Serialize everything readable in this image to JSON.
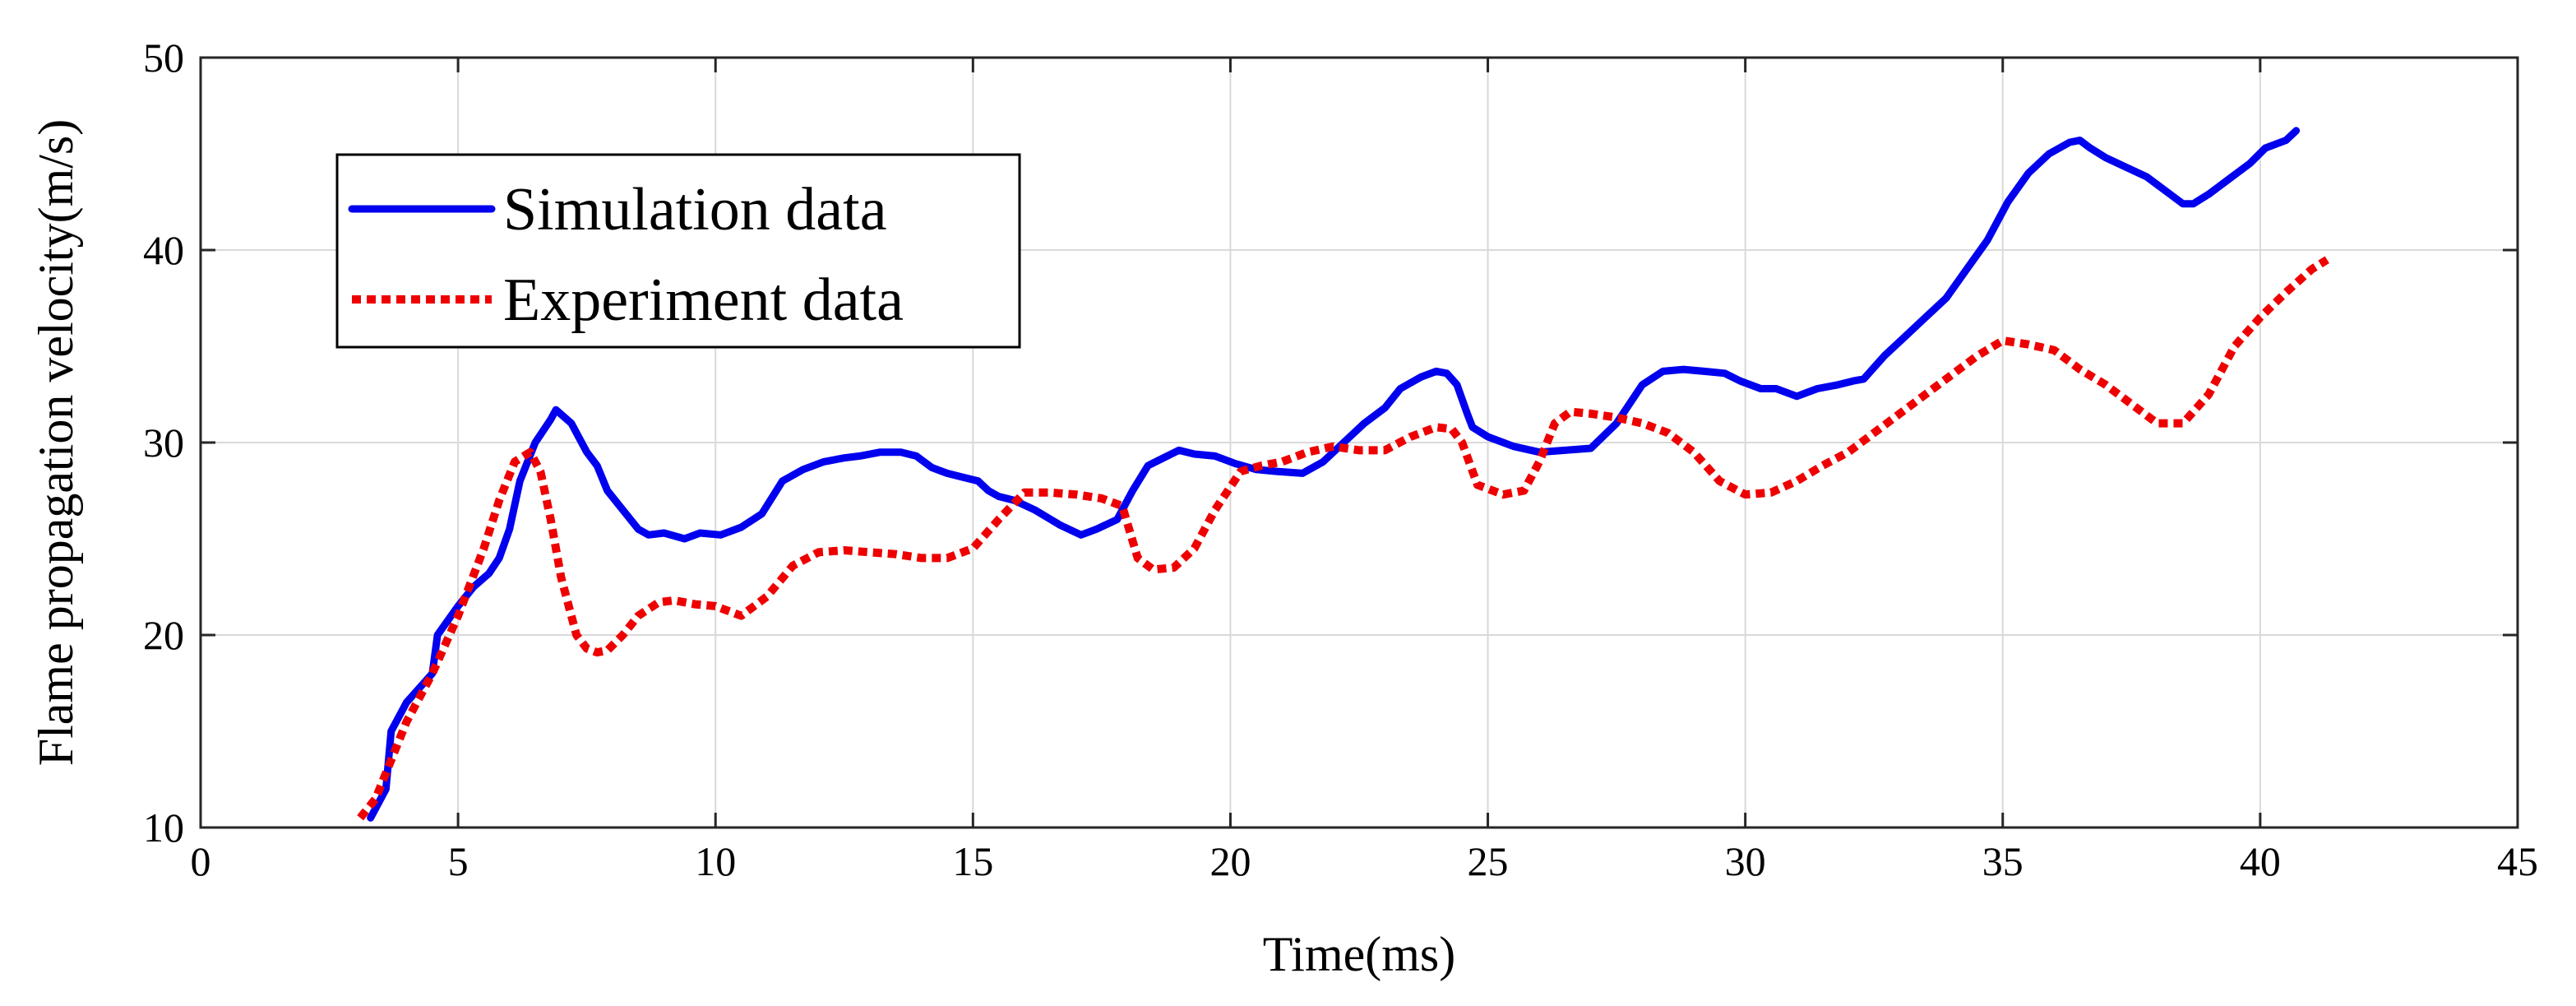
{
  "chart_data": {
    "type": "line",
    "title": "",
    "xlabel": "Time(ms)",
    "ylabel": "Flame propagation velocity(m/s)",
    "xlim": [
      0,
      45
    ],
    "ylim": [
      10,
      50
    ],
    "xticks": [
      0,
      5,
      10,
      15,
      20,
      25,
      30,
      35,
      40,
      45
    ],
    "yticks": [
      10,
      20,
      30,
      40,
      50
    ],
    "grid": true,
    "legend_position": "top-left",
    "series": [
      {
        "name": "Simulation data",
        "color": "#0000ee",
        "style": "solid",
        "x": [
          3.3,
          3.6,
          3.7,
          4.0,
          4.5,
          4.6,
          5.0,
          5.3,
          5.6,
          5.8,
          6.0,
          6.2,
          6.5,
          6.8,
          6.9,
          7.2,
          7.5,
          7.7,
          7.9,
          8.2,
          8.5,
          8.7,
          9.0,
          9.4,
          9.7,
          10.1,
          10.5,
          10.9,
          11.3,
          11.7,
          12.1,
          12.5,
          12.8,
          13.2,
          13.6,
          13.9,
          14.2,
          14.5,
          14.8,
          15.1,
          15.3,
          15.5,
          15.8,
          16.2,
          16.7,
          17.1,
          17.4,
          17.8,
          18.1,
          18.4,
          18.7,
          19.0,
          19.3,
          19.7,
          20.1,
          20.5,
          20.9,
          21.4,
          21.8,
          22.2,
          22.6,
          23.0,
          23.3,
          23.7,
          24.0,
          24.2,
          24.4,
          24.6,
          24.7,
          25.0,
          25.5,
          26.0,
          26.5,
          27.0,
          27.5,
          28.0,
          28.4,
          28.8,
          29.2,
          29.6,
          29.9,
          30.3,
          30.6,
          30.8,
          31.0,
          31.4,
          31.8,
          32.1,
          32.3,
          32.7,
          33.1,
          33.5,
          33.9,
          34.3,
          34.7,
          35.1,
          35.5,
          35.9,
          36.3,
          36.5,
          36.7,
          37.0,
          37.4,
          37.8,
          38.2,
          38.5,
          38.7,
          39.0,
          39.4,
          39.8,
          40.1,
          40.5,
          40.7
        ],
        "y": [
          10.5,
          12.0,
          15.0,
          16.5,
          18.0,
          20.0,
          21.5,
          22.5,
          23.2,
          24.0,
          25.5,
          28.0,
          30.0,
          31.2,
          31.7,
          31.0,
          29.5,
          28.8,
          27.5,
          26.5,
          25.5,
          25.2,
          25.3,
          25.0,
          25.3,
          25.2,
          25.6,
          26.3,
          28.0,
          28.6,
          29.0,
          29.2,
          29.3,
          29.5,
          29.5,
          29.3,
          28.7,
          28.4,
          28.2,
          28.0,
          27.5,
          27.2,
          27.0,
          26.5,
          25.7,
          25.2,
          25.5,
          26.0,
          27.5,
          28.8,
          29.2,
          29.6,
          29.4,
          29.3,
          28.9,
          28.6,
          28.5,
          28.4,
          29.0,
          30.0,
          31.0,
          31.8,
          32.8,
          33.4,
          33.7,
          33.6,
          33.0,
          31.5,
          30.8,
          30.3,
          29.8,
          29.5,
          29.6,
          29.7,
          31.0,
          33.0,
          33.7,
          33.8,
          33.7,
          33.6,
          33.2,
          32.8,
          32.8,
          32.6,
          32.4,
          32.8,
          33.0,
          33.2,
          33.3,
          34.5,
          35.5,
          36.5,
          37.5,
          39.0,
          40.5,
          42.5,
          44.0,
          45.0,
          45.6,
          45.7,
          45.3,
          44.8,
          44.3,
          43.8,
          43.0,
          42.4,
          42.4,
          42.9,
          43.7,
          44.5,
          45.3,
          45.7,
          46.2
        ]
      },
      {
        "name": "Experiment data",
        "color": "#ee0000",
        "style": "dotted",
        "x": [
          3.1,
          3.4,
          3.7,
          4.0,
          4.5,
          5.0,
          5.5,
          5.8,
          6.1,
          6.4,
          6.6,
          6.8,
          7.0,
          7.3,
          7.5,
          7.7,
          7.9,
          8.2,
          8.5,
          8.9,
          9.2,
          9.6,
          10.0,
          10.5,
          11.0,
          11.5,
          12.0,
          12.5,
          13.0,
          13.5,
          14.0,
          14.5,
          15.0,
          15.5,
          16.0,
          16.5,
          17.0,
          17.5,
          17.9,
          18.2,
          18.5,
          18.9,
          19.3,
          19.7,
          20.2,
          20.6,
          21.0,
          21.5,
          22.0,
          22.5,
          23.0,
          23.5,
          24.0,
          24.3,
          24.5,
          24.8,
          25.3,
          25.7,
          26.0,
          26.3,
          26.6,
          27.0,
          27.5,
          28.0,
          28.5,
          29.0,
          29.5,
          30.0,
          30.5,
          31.0,
          31.5,
          32.0,
          32.5,
          33.0,
          33.5,
          34.0,
          34.5,
          35.0,
          35.5,
          36.0,
          36.5,
          37.0,
          37.5,
          38.0,
          38.5,
          39.0,
          39.5,
          40.0,
          40.5,
          41.0,
          41.3
        ],
        "y": [
          10.5,
          11.5,
          13.5,
          15.5,
          18.0,
          21.0,
          24.5,
          27.0,
          29.0,
          29.5,
          28.5,
          26.0,
          23.0,
          20.0,
          19.3,
          19.1,
          19.2,
          20.0,
          21.0,
          21.7,
          21.8,
          21.6,
          21.5,
          21.0,
          22.0,
          23.6,
          24.3,
          24.4,
          24.3,
          24.2,
          24.0,
          24.0,
          24.5,
          26.0,
          27.4,
          27.4,
          27.3,
          27.1,
          26.7,
          24.0,
          23.4,
          23.5,
          24.5,
          26.5,
          28.5,
          28.8,
          29.0,
          29.5,
          29.8,
          29.6,
          29.6,
          30.3,
          30.8,
          30.7,
          30.0,
          27.8,
          27.3,
          27.5,
          29.0,
          31.0,
          31.6,
          31.5,
          31.3,
          31.0,
          30.5,
          29.5,
          28.0,
          27.3,
          27.4,
          28.0,
          28.8,
          29.5,
          30.5,
          31.5,
          32.5,
          33.5,
          34.5,
          35.3,
          35.1,
          34.8,
          33.8,
          33.0,
          32.0,
          31.0,
          31.0,
          32.5,
          35.0,
          36.5,
          37.8,
          39.0,
          39.5
        ]
      }
    ]
  }
}
